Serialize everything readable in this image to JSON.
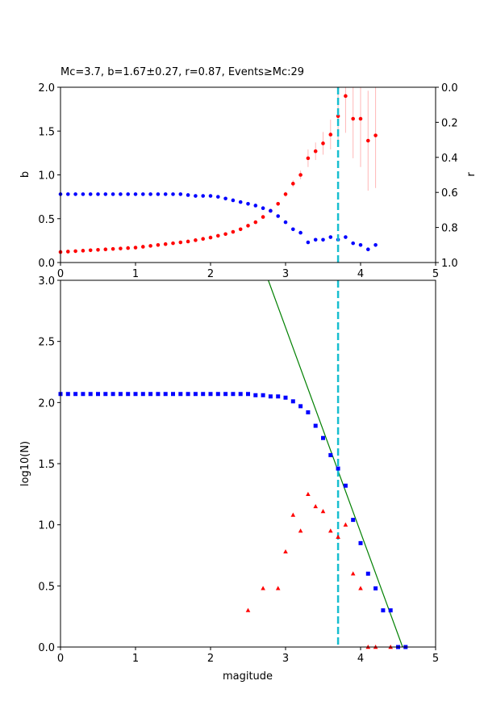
{
  "chart_data": [
    {
      "type": "scatter",
      "title": "Mc=3.7, b=1.67±0.27, r=0.87, Events≥Mc:29",
      "xlabel": "",
      "ylabel": "b",
      "ylabel_right": "r",
      "xlim": [
        0,
        5
      ],
      "ylim": [
        0,
        2.0
      ],
      "ylim_right": [
        1.0,
        0.0
      ],
      "x_ticks": [
        "0",
        "1",
        "2",
        "3",
        "4",
        "5"
      ],
      "y_ticks": [
        "0.0",
        "0.5",
        "1.0",
        "1.5",
        "2.0"
      ],
      "y_ticks_right": [
        "0.0",
        "0.2",
        "0.4",
        "0.6",
        "0.8",
        "1.0"
      ],
      "grid": false,
      "mc_line": {
        "x": 3.7,
        "color": "#17becf",
        "style": "dashed"
      },
      "series": [
        {
          "color": "#ff0000",
          "axis": "left",
          "marker": "circle",
          "x": [
            0.0,
            0.1,
            0.2,
            0.3,
            0.4,
            0.5,
            0.6,
            0.7,
            0.8,
            0.9,
            1.0,
            1.1,
            1.2,
            1.3,
            1.4,
            1.5,
            1.6,
            1.7,
            1.8,
            1.9,
            2.0,
            2.1,
            2.2,
            2.3,
            2.4,
            2.5,
            2.6,
            2.7,
            2.8,
            2.9,
            3.0,
            3.1,
            3.2,
            3.3,
            3.4,
            3.5,
            3.6,
            3.7,
            3.8,
            3.9,
            4.0,
            4.1,
            4.2
          ],
          "y": [
            0.12,
            0.125,
            0.13,
            0.135,
            0.14,
            0.145,
            0.15,
            0.155,
            0.16,
            0.165,
            0.17,
            0.18,
            0.19,
            0.2,
            0.21,
            0.22,
            0.23,
            0.24,
            0.255,
            0.27,
            0.285,
            0.305,
            0.325,
            0.35,
            0.38,
            0.42,
            0.46,
            0.52,
            0.59,
            0.67,
            0.78,
            0.9,
            1.0,
            1.19,
            1.27,
            1.36,
            1.46,
            1.67,
            1.9,
            1.64,
            1.64,
            1.39,
            1.45
          ],
          "err": [
            0,
            0,
            0,
            0,
            0,
            0,
            0,
            0,
            0,
            0,
            0,
            0,
            0,
            0,
            0,
            0,
            0,
            0,
            0,
            0,
            0,
            0,
            0,
            0,
            0,
            0,
            0,
            0,
            0,
            0.02,
            0.03,
            0.04,
            0.05,
            0.1,
            0.1,
            0.13,
            0.17,
            0.27,
            0.42,
            0.45,
            0.55,
            0.57,
            0.6
          ]
        },
        {
          "color": "#0000ff",
          "axis": "right",
          "marker": "circle",
          "x": [
            0.0,
            0.1,
            0.2,
            0.3,
            0.4,
            0.5,
            0.6,
            0.7,
            0.8,
            0.9,
            1.0,
            1.1,
            1.2,
            1.3,
            1.4,
            1.5,
            1.6,
            1.7,
            1.8,
            1.9,
            2.0,
            2.1,
            2.2,
            2.3,
            2.4,
            2.5,
            2.6,
            2.7,
            2.8,
            2.9,
            3.0,
            3.1,
            3.2,
            3.3,
            3.4,
            3.5,
            3.6,
            3.7,
            3.8,
            3.9,
            4.0,
            4.1,
            4.2
          ],
          "y": [
            0.61,
            0.61,
            0.61,
            0.61,
            0.61,
            0.61,
            0.61,
            0.61,
            0.61,
            0.61,
            0.61,
            0.61,
            0.61,
            0.61,
            0.61,
            0.61,
            0.61,
            0.615,
            0.62,
            0.62,
            0.62,
            0.625,
            0.635,
            0.645,
            0.655,
            0.665,
            0.675,
            0.69,
            0.705,
            0.735,
            0.77,
            0.81,
            0.83,
            0.885,
            0.87,
            0.87,
            0.855,
            0.87,
            0.855,
            0.89,
            0.9,
            0.925,
            0.9
          ]
        }
      ]
    },
    {
      "type": "scatter",
      "title": "",
      "xlabel": "magitude",
      "ylabel": "log10(N)",
      "xlim": [
        0,
        5
      ],
      "ylim": [
        0,
        3.0
      ],
      "x_ticks": [
        "0",
        "1",
        "2",
        "3",
        "4",
        "5"
      ],
      "y_ticks": [
        "0.0",
        "0.5",
        "1.0",
        "1.5",
        "2.0",
        "2.5",
        "3.0"
      ],
      "grid": false,
      "mc_line": {
        "x": 3.7,
        "color": "#17becf",
        "style": "dashed"
      },
      "fit_line": {
        "color": "#008000",
        "x": [
          2.77,
          4.56
        ],
        "y": [
          3.0,
          0.0
        ]
      },
      "series": [
        {
          "color": "#0000ff",
          "marker": "square",
          "x": [
            0.0,
            0.1,
            0.2,
            0.3,
            0.4,
            0.5,
            0.6,
            0.7,
            0.8,
            0.9,
            1.0,
            1.1,
            1.2,
            1.3,
            1.4,
            1.5,
            1.6,
            1.7,
            1.8,
            1.9,
            2.0,
            2.1,
            2.2,
            2.3,
            2.4,
            2.5,
            2.6,
            2.7,
            2.8,
            2.9,
            3.0,
            3.1,
            3.2,
            3.3,
            3.4,
            3.5,
            3.6,
            3.7,
            3.8,
            3.9,
            4.0,
            4.1,
            4.2,
            4.3,
            4.4,
            4.5,
            4.6
          ],
          "y": [
            2.07,
            2.07,
            2.07,
            2.07,
            2.07,
            2.07,
            2.07,
            2.07,
            2.07,
            2.07,
            2.07,
            2.07,
            2.07,
            2.07,
            2.07,
            2.07,
            2.07,
            2.07,
            2.07,
            2.07,
            2.07,
            2.07,
            2.07,
            2.07,
            2.07,
            2.07,
            2.06,
            2.06,
            2.05,
            2.05,
            2.04,
            2.01,
            1.97,
            1.92,
            1.81,
            1.71,
            1.57,
            1.46,
            1.32,
            1.04,
            0.85,
            0.6,
            0.48,
            0.3,
            0.3,
            0.0,
            0.0
          ]
        },
        {
          "color": "#ff0000",
          "marker": "triangle",
          "x": [
            2.5,
            2.7,
            2.9,
            3.0,
            3.1,
            3.2,
            3.3,
            3.4,
            3.5,
            3.6,
            3.7,
            3.8,
            3.9,
            4.0,
            4.1,
            4.2,
            4.4
          ],
          "y": [
            0.3,
            0.48,
            0.48,
            0.78,
            1.08,
            0.95,
            1.25,
            1.15,
            1.11,
            0.95,
            0.9,
            1.0,
            0.6,
            0.48,
            0.0,
            0.0,
            0.0
          ]
        }
      ]
    }
  ]
}
